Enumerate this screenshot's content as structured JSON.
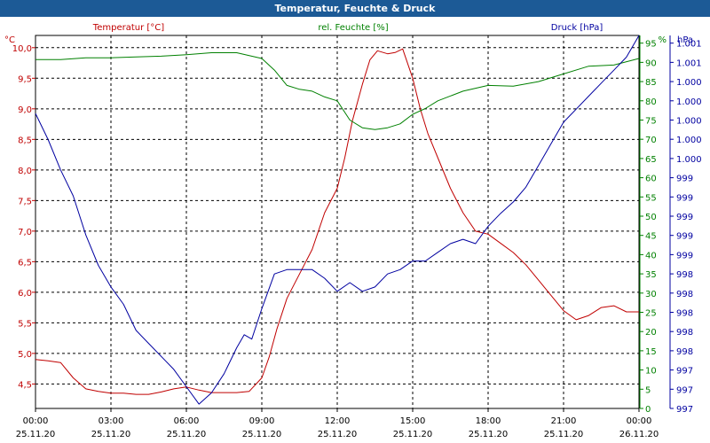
{
  "window": {
    "title": "Temperatur, Feuchte & Druck"
  },
  "colors": {
    "titlebar": "#1c5a96",
    "temperature": "#c00000",
    "humidity": "#008000",
    "pressure": "#0000a0",
    "grid": "#000000"
  },
  "chart_data": {
    "type": "line",
    "title": "Temperatur, Feuchte & Druck",
    "x_tick_labels": [
      {
        "time": "00:00",
        "date": "25.11.20"
      },
      {
        "time": "03:00",
        "date": "25.11.20"
      },
      {
        "time": "06:00",
        "date": "25.11.20"
      },
      {
        "time": "09:00",
        "date": "25.11.20"
      },
      {
        "time": "12:00",
        "date": "25.11.20"
      },
      {
        "time": "15:00",
        "date": "25.11.20"
      },
      {
        "time": "18:00",
        "date": "25.11.20"
      },
      {
        "time": "21:00",
        "date": "25.11.20"
      },
      {
        "time": "00:00",
        "date": "26.11.20"
      }
    ],
    "xlim": [
      0,
      24
    ],
    "axes": {
      "temperature": {
        "unit": "°C",
        "label": "Temperatur [°C]",
        "ylim": [
          4.1,
          10.2
        ],
        "ticks": [
          4.5,
          5.0,
          5.5,
          6.0,
          6.5,
          7.0,
          7.5,
          8.0,
          8.5,
          9.0,
          9.5,
          10.0
        ],
        "tick_labels": [
          "4,5",
          "5,0",
          "5,5",
          "6,0",
          "6,5",
          "7,0",
          "7,5",
          "8,0",
          "8,5",
          "9,0",
          "9,5",
          "10,0"
        ]
      },
      "humidity": {
        "unit": "%",
        "label": "rel. Feuchte [%]",
        "ylim": [
          0,
          97
        ],
        "ticks": [
          0,
          5,
          10,
          15,
          20,
          25,
          30,
          35,
          40,
          45,
          50,
          55,
          60,
          65,
          70,
          75,
          80,
          85,
          90,
          95
        ],
        "tick_labels": [
          "0",
          "5",
          "10",
          "15",
          "20",
          "25",
          "30",
          "35",
          "40",
          "45",
          "50",
          "55",
          "60",
          "65",
          "70",
          "75",
          "80",
          "85",
          "90",
          "95"
        ]
      },
      "pressure": {
        "unit": "hPa",
        "label": "Druck [hPa]",
        "ylim": [
          997,
          1001.3
        ],
        "tick_labels": [
          "997",
          "997",
          "997",
          "998",
          "998",
          "998",
          "998",
          "998",
          "999",
          "999",
          "999",
          "999",
          "999",
          "1.000",
          "1.000",
          "1.000",
          "1.000",
          "1.000",
          "1.001",
          "1.001"
        ]
      }
    },
    "series": [
      {
        "name": "Temperatur [°C]",
        "axis": "temperature",
        "x": [
          0,
          0.5,
          1,
          1.5,
          2,
          2.5,
          3,
          3.5,
          4,
          4.5,
          5,
          5.5,
          6,
          6.5,
          7,
          7.5,
          8,
          8.5,
          9,
          9.3,
          9.6,
          10,
          10.5,
          11,
          11.5,
          12,
          12.3,
          12.6,
          13,
          13.3,
          13.6,
          14,
          14.3,
          14.6,
          15,
          15.3,
          15.6,
          16,
          16.5,
          17,
          17.5,
          18,
          18.5,
          19,
          19.5,
          20,
          20.5,
          21,
          21.5,
          22,
          22.5,
          23,
          23.5,
          24
        ],
        "values": [
          4.9,
          4.88,
          4.85,
          4.6,
          4.42,
          4.38,
          4.35,
          4.35,
          4.33,
          4.33,
          4.37,
          4.42,
          4.45,
          4.4,
          4.36,
          4.36,
          4.36,
          4.38,
          4.6,
          4.95,
          5.4,
          5.9,
          6.3,
          6.7,
          7.3,
          7.7,
          8.2,
          8.8,
          9.4,
          9.8,
          9.95,
          9.9,
          9.92,
          9.98,
          9.5,
          9.0,
          8.6,
          8.2,
          7.7,
          7.3,
          7.0,
          6.95,
          6.8,
          6.65,
          6.45,
          6.2,
          5.95,
          5.7,
          5.55,
          5.62,
          5.75,
          5.78,
          5.68,
          5.68
        ]
      },
      {
        "name": "rel. Feuchte [%]",
        "axis": "humidity",
        "x": [
          0,
          1,
          2,
          3,
          4,
          5,
          6,
          7,
          8,
          9,
          9.5,
          10,
          10.5,
          11,
          11.5,
          12,
          12.5,
          13,
          13.5,
          14,
          14.5,
          15,
          15.5,
          16,
          17,
          18,
          19,
          20,
          21,
          22,
          23,
          24
        ],
        "values": [
          90.7,
          90.7,
          91.2,
          91.2,
          91.4,
          91.6,
          92.0,
          92.5,
          92.5,
          91.0,
          88.0,
          84.0,
          83.0,
          82.5,
          81.0,
          80.0,
          75.0,
          73.0,
          72.5,
          73.0,
          74.0,
          76.5,
          78.0,
          80.0,
          82.5,
          84.0,
          83.8,
          85.0,
          87.0,
          89.0,
          89.3,
          91.0
        ]
      },
      {
        "name": "Druck [hPa]",
        "axis": "pressure",
        "x": [
          0,
          0.5,
          1,
          1.5,
          2,
          2.5,
          3,
          3.5,
          4,
          4.5,
          5,
          5.5,
          6,
          6.5,
          7,
          7.5,
          8,
          8.3,
          8.6,
          9,
          9.5,
          10,
          10.5,
          11,
          11.5,
          12,
          12.5,
          13,
          13.5,
          14,
          14.5,
          15,
          15.5,
          16,
          16.5,
          17,
          17.5,
          18,
          18.5,
          19,
          19.5,
          20,
          20.5,
          21,
          21.5,
          22,
          22.5,
          23,
          23.5,
          24
        ],
        "values": [
          1000.4,
          1000.1,
          999.75,
          999.45,
          999.0,
          998.65,
          998.4,
          998.2,
          997.9,
          997.75,
          997.6,
          997.45,
          997.25,
          997.05,
          997.18,
          997.4,
          997.7,
          997.85,
          997.8,
          998.15,
          998.55,
          998.6,
          998.6,
          998.6,
          998.5,
          998.35,
          998.45,
          998.35,
          998.4,
          998.55,
          998.6,
          998.7,
          998.7,
          998.8,
          998.9,
          998.95,
          998.9,
          999.1,
          999.25,
          999.38,
          999.55,
          999.8,
          1000.05,
          1000.3,
          1000.45,
          1000.6,
          1000.75,
          1000.9,
          1001.05,
          1001.3
        ]
      }
    ]
  }
}
